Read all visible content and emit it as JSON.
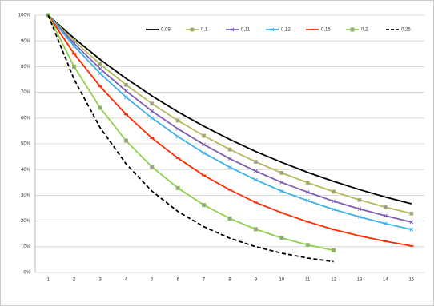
{
  "chart_data": {
    "type": "line",
    "categories": [
      "1",
      "2",
      "3",
      "4",
      "5",
      "6",
      "7",
      "8",
      "9",
      "10",
      "11",
      "12",
      "13",
      "14",
      "15"
    ],
    "series": [
      {
        "name": "0,09",
        "color": "#000000",
        "marker": "none",
        "dash": false,
        "values": [
          100,
          91,
          82.8,
          75.4,
          68.6,
          62.4,
          56.8,
          51.7,
          47.0,
          42.8,
          38.9,
          35.4,
          32.2,
          29.3,
          26.7
        ]
      },
      {
        "name": "0,1",
        "color": "#b5b85a",
        "marker": "square",
        "dash": false,
        "values": [
          100,
          90,
          81,
          72.9,
          65.6,
          59.0,
          53.1,
          47.8,
          43.0,
          38.7,
          34.9,
          31.4,
          28.2,
          25.4,
          22.9
        ]
      },
      {
        "name": "0,11",
        "color": "#7e5cb4",
        "marker": "x",
        "dash": false,
        "values": [
          100,
          89,
          79.2,
          70.5,
          62.7,
          55.8,
          49.7,
          44.2,
          39.4,
          35.0,
          31.2,
          27.7,
          24.7,
          22.0,
          19.6
        ]
      },
      {
        "name": "0,12",
        "color": "#3fb0e8",
        "marker": "x",
        "dash": false,
        "values": [
          100,
          88,
          77.4,
          68.1,
          60.0,
          52.8,
          46.4,
          40.9,
          36.0,
          31.6,
          27.9,
          24.5,
          21.6,
          19.0,
          16.7
        ]
      },
      {
        "name": "0,15",
        "color": "#ff2a00",
        "marker": "dash",
        "dash": false,
        "values": [
          100,
          85,
          72.3,
          61.4,
          52.2,
          44.4,
          37.7,
          32.1,
          27.2,
          23.2,
          19.7,
          16.7,
          14.2,
          12.1,
          10.3
        ]
      },
      {
        "name": "0,2",
        "color": "#8fd14f",
        "marker": "circle",
        "dash": false,
        "values": [
          100,
          80,
          64,
          51.2,
          41.0,
          32.8,
          26.2,
          21.0,
          16.8,
          13.4,
          10.7,
          8.6,
          null,
          null,
          null
        ]
      },
      {
        "name": "0,25",
        "color": "#000000",
        "marker": "none",
        "dash": true,
        "values": [
          100,
          75,
          56.3,
          42.2,
          31.6,
          23.7,
          17.8,
          13.3,
          10.0,
          7.5,
          5.6,
          4.2,
          null,
          null,
          null
        ]
      }
    ],
    "ylim": [
      0,
      100
    ],
    "yticks": [
      {
        "value": 0,
        "label": "0%"
      },
      {
        "value": 10,
        "label": "10%"
      },
      {
        "value": 20,
        "label": "20%"
      },
      {
        "value": 30,
        "label": "30%"
      },
      {
        "value": 40,
        "label": "40%"
      },
      {
        "value": 50,
        "label": "50%"
      },
      {
        "value": 60,
        "label": "60%"
      },
      {
        "value": 70,
        "label": "70%"
      },
      {
        "value": 80,
        "label": "80%"
      },
      {
        "value": 90,
        "label": "90%"
      },
      {
        "value": 100,
        "label": "100%"
      }
    ],
    "grid": true,
    "legend": "top"
  }
}
